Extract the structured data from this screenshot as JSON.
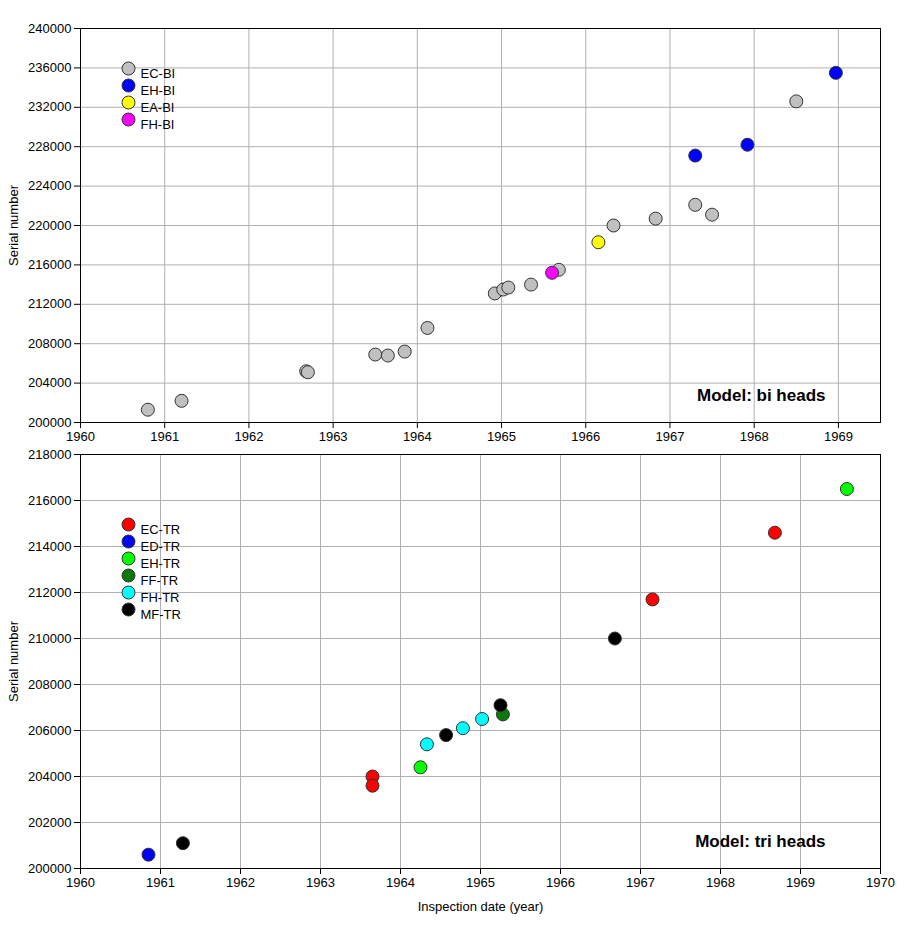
{
  "chart_data": [
    {
      "type": "scatter",
      "annotations": [
        "Model: bi heads"
      ],
      "y_label": "Serial number",
      "xlim": [
        1960,
        1969.5
      ],
      "xticks": [
        1960,
        1961,
        1962,
        1963,
        1964,
        1965,
        1966,
        1967,
        1968,
        1969
      ],
      "ylim": [
        200000,
        240000
      ],
      "yticks": [
        200000,
        204000,
        208000,
        212000,
        216000,
        220000,
        224000,
        228000,
        232000,
        236000,
        240000
      ],
      "grid": true,
      "legend": "top-left",
      "series": [
        {
          "name": "EC-BI",
          "color": "#c0c0c0",
          "x": [
            1960.8,
            1961.2,
            1962.68,
            1962.7,
            1963.5,
            1963.65,
            1963.85,
            1964.12,
            1964.92,
            1965.02,
            1965.08,
            1965.35,
            1965.68,
            1966.33,
            1966.83,
            1967.3,
            1967.5,
            1968.5
          ],
          "values": [
            201300,
            202200,
            205200,
            205100,
            206900,
            206800,
            207200,
            209600,
            213100,
            213500,
            213700,
            214000,
            215500,
            220000,
            220700,
            222100,
            221100,
            232600
          ]
        },
        {
          "name": "EH-BI",
          "color": "#0000ff",
          "x": [
            1967.3,
            1967.92,
            1968.97
          ],
          "values": [
            227100,
            228200,
            235500
          ]
        },
        {
          "name": "EA-BI",
          "color": "#ffff00",
          "x": [
            1966.15
          ],
          "values": [
            218300
          ]
        },
        {
          "name": "FH-BI",
          "color": "#ff00ff",
          "x": [
            1965.6
          ],
          "values": [
            215200
          ]
        }
      ]
    },
    {
      "type": "scatter",
      "annotations": [
        "Model: tri heads"
      ],
      "x_label": "Inspection date (year)",
      "y_label": "Serial number",
      "xlim": [
        1960,
        1970
      ],
      "xticks": [
        1960,
        1961,
        1962,
        1963,
        1964,
        1965,
        1966,
        1967,
        1968,
        1969,
        1970
      ],
      "ylim": [
        200000,
        218000
      ],
      "yticks": [
        200000,
        202000,
        204000,
        206000,
        208000,
        210000,
        212000,
        214000,
        216000,
        218000
      ],
      "grid": true,
      "legend": "top-left",
      "series": [
        {
          "name": "EC-TR",
          "color": "#ff0000",
          "x": [
            1963.65,
            1963.65,
            1967.15,
            1968.68
          ],
          "values": [
            204000,
            203600,
            211700,
            214600
          ]
        },
        {
          "name": "ED-TR",
          "color": "#0000ff",
          "x": [
            1960.85
          ],
          "values": [
            200600
          ]
        },
        {
          "name": "EH-TR",
          "color": "#00ff00",
          "x": [
            1964.25,
            1969.58
          ],
          "values": [
            204400,
            216500
          ]
        },
        {
          "name": "FF-TR",
          "color": "#0a7a0a",
          "x": [
            1965.28
          ],
          "values": [
            206700
          ]
        },
        {
          "name": "FH-TR",
          "color": "#00ffff",
          "x": [
            1964.33,
            1964.78,
            1965.02
          ],
          "values": [
            205400,
            206100,
            206500
          ]
        },
        {
          "name": "MF-TR",
          "color": "#000000",
          "x": [
            1961.28,
            1964.57,
            1965.25,
            1966.68
          ],
          "values": [
            201100,
            205800,
            207100,
            210000
          ]
        }
      ]
    }
  ]
}
